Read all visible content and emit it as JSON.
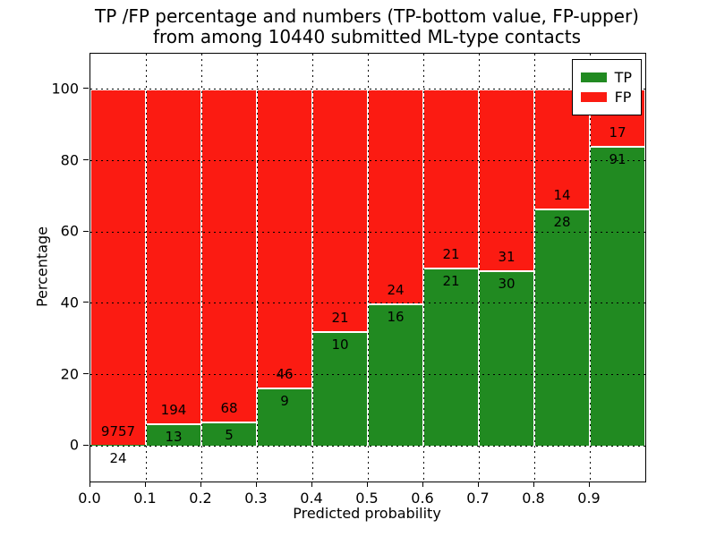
{
  "chart_data": {
    "type": "bar",
    "stacked": true,
    "normalized_to_percent": true,
    "title_line1": "TP /FP percentage and numbers (TP-bottom value, FP-upper)",
    "title_line2": "from among 10440 submitted ML-type contacts",
    "xlabel": "Predicted probability",
    "ylabel": "Percentage",
    "xlim": [
      0.0,
      1.0
    ],
    "ylim": [
      -10,
      110
    ],
    "x_ticks": [
      0.0,
      0.1,
      0.2,
      0.3,
      0.4,
      0.5,
      0.6,
      0.7,
      0.8,
      0.9
    ],
    "x_tick_labels": [
      "0.0",
      "0.1",
      "0.2",
      "0.3",
      "0.4",
      "0.5",
      "0.6",
      "0.7",
      "0.8",
      "0.9"
    ],
    "y_ticks": [
      0,
      20,
      40,
      60,
      80,
      100
    ],
    "grid": "dotted",
    "bin_starts": [
      0.0,
      0.1,
      0.2,
      0.3,
      0.4,
      0.5,
      0.6,
      0.7,
      0.8,
      0.9
    ],
    "bin_width": 0.1,
    "series": [
      {
        "name": "TP",
        "color": "#218a21",
        "counts": [
          24,
          13,
          5,
          9,
          10,
          16,
          21,
          30,
          28,
          91
        ]
      },
      {
        "name": "FP",
        "color": "#fb1b12",
        "counts": [
          9757,
          194,
          68,
          46,
          21,
          24,
          21,
          31,
          14,
          17
        ]
      }
    ],
    "legend_position": "upper right",
    "total_contacts": 10440
  }
}
